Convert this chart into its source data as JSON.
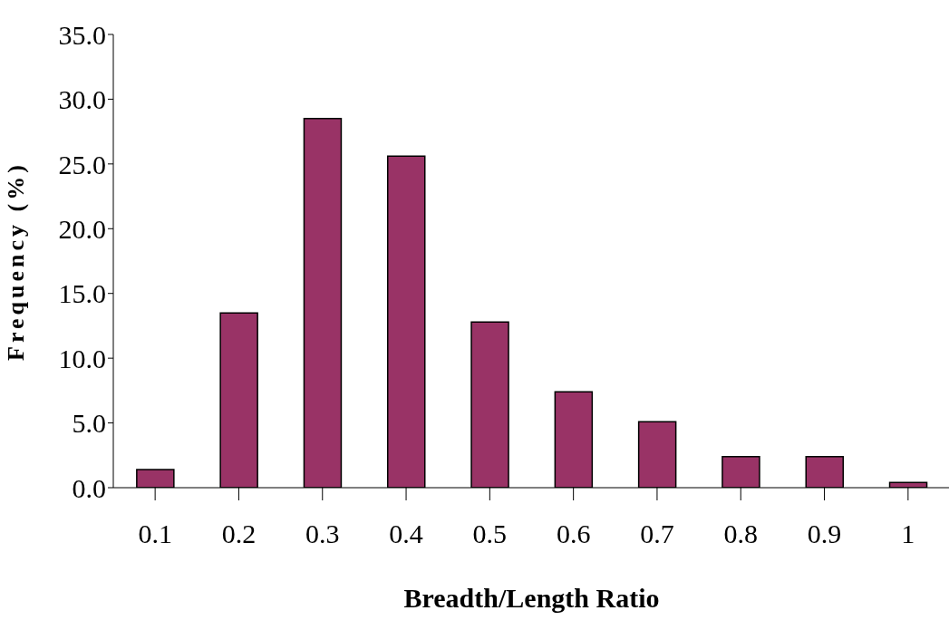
{
  "chart_data": {
    "type": "bar",
    "xlabel": "Breadth/Length Ratio",
    "ylabel": "Frequency (%)",
    "categories": [
      "0.1",
      "0.2",
      "0.3",
      "0.4",
      "0.5",
      "0.6",
      "0.7",
      "0.8",
      "0.9",
      "1"
    ],
    "values": [
      1.4,
      13.5,
      28.5,
      25.6,
      12.8,
      7.4,
      5.1,
      2.4,
      2.4,
      0.4
    ],
    "color": "#993366",
    "ylim": [
      0,
      35
    ],
    "yticks": [
      {
        "value": 0,
        "label": "0.0"
      },
      {
        "value": 5,
        "label": "5.0"
      },
      {
        "value": 10,
        "label": "10.0"
      },
      {
        "value": 15,
        "label": "15.0"
      },
      {
        "value": 20,
        "label": "20.0"
      },
      {
        "value": 25,
        "label": "25.0"
      },
      {
        "value": 30,
        "label": "30.0"
      },
      {
        "value": 35,
        "label": "35.0"
      }
    ],
    "grid": false,
    "legend": false
  }
}
